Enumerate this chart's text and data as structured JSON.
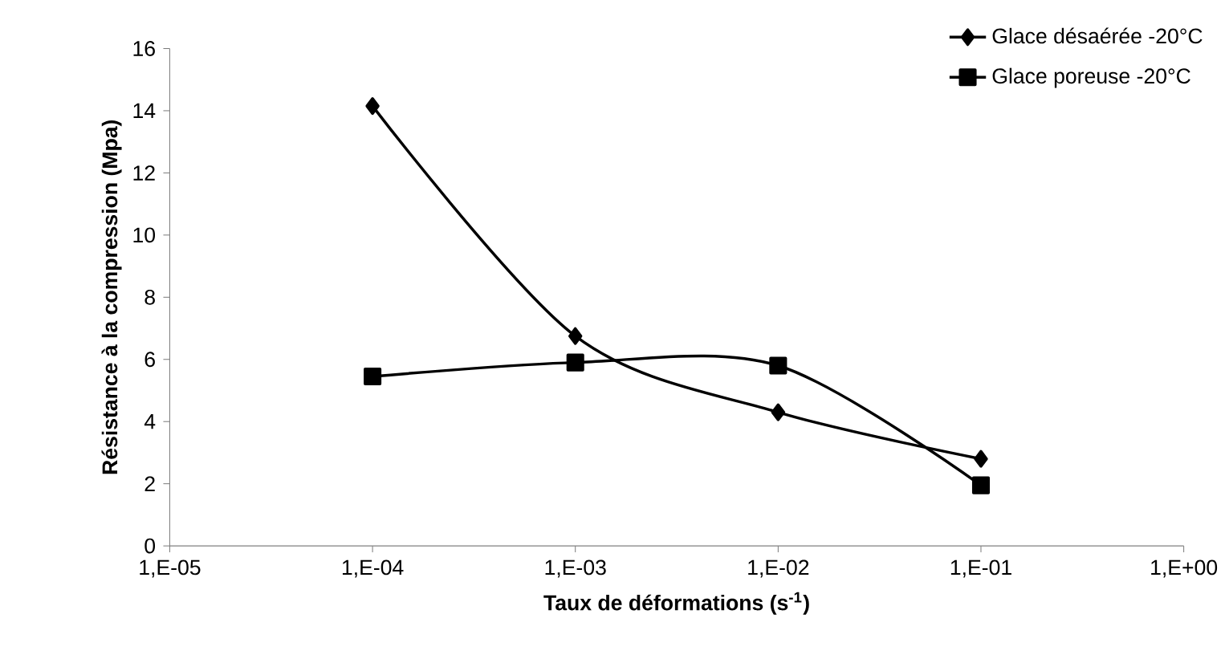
{
  "chart_data": {
    "type": "line",
    "xlabel": "Taux de déformations (s$^{-1}$)",
    "ylabel": "Résistance à la compression (Mpa)",
    "categories": [
      "1,E-05",
      "1,E-04",
      "1,E-03",
      "1,E-02",
      "1,E-01",
      "1,E+00"
    ],
    "ylim": [
      0,
      16
    ],
    "yticks": [
      0,
      2,
      4,
      6,
      8,
      10,
      12,
      14,
      16
    ],
    "legend": "top right",
    "series": [
      {
        "name": "Glace désaérée -20°C",
        "color": "#000000",
        "marker": "diamond",
        "values": [
          null,
          14.15,
          6.75,
          4.3,
          2.8,
          null
        ]
      },
      {
        "name": "Glace poreuse -20°C",
        "color": "#000000",
        "marker": "square",
        "values": [
          null,
          5.45,
          5.9,
          5.8,
          1.95,
          null
        ]
      }
    ]
  }
}
